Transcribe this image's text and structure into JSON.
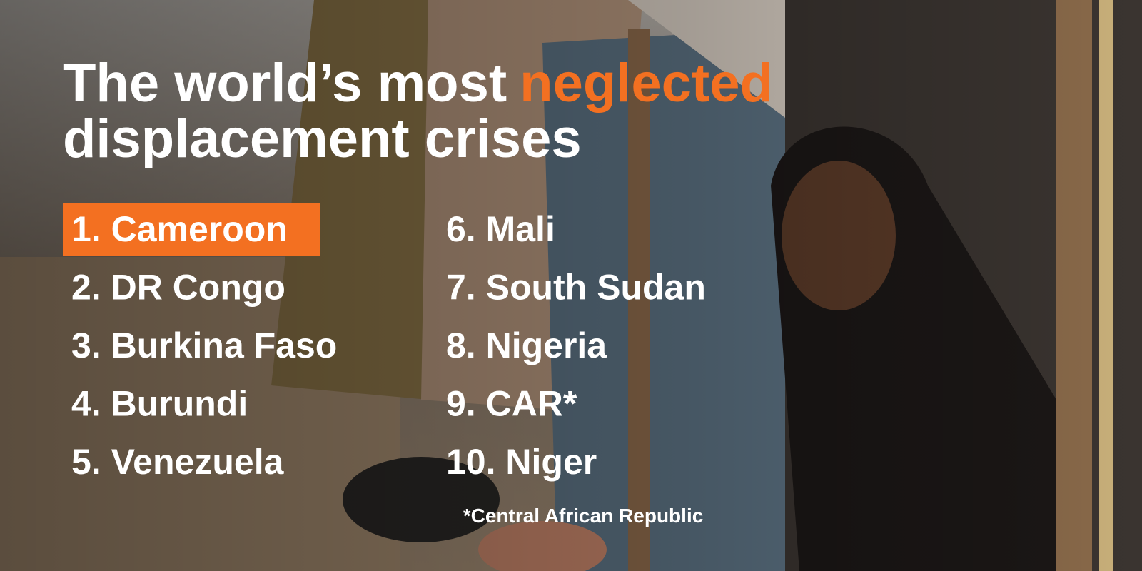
{
  "title": {
    "line1": "The world’s most",
    "highlight": "neglected",
    "line2": "displacement crises"
  },
  "items": [
    "1. Cameroon",
    "2. DR Congo",
    "3. Burkina Faso",
    "4. Burundi",
    "5. Venezuela",
    "6. Mali",
    "7. South Sudan",
    "8. Nigeria",
    "9. CAR*",
    "10. Niger"
  ],
  "footnote": "*Central African Republic"
}
